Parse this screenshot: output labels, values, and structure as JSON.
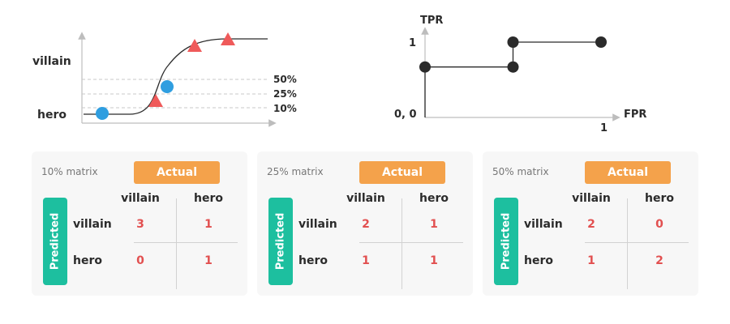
{
  "sigmoid_plot": {
    "y_labels": [
      "villain",
      "hero"
    ],
    "thresholds": [
      "50%",
      "25%",
      "10%"
    ],
    "colors": {
      "circle": "#2f9ee0",
      "triangle": "#ef5a5a",
      "curve": "#2b2b2b",
      "axis": "#bdbdbd",
      "dash": "#c8c8c8"
    }
  },
  "roc_plot": {
    "ylabel": "TPR",
    "xlabel": "FPR",
    "origin_label": "0, 0",
    "y_tick": "1",
    "x_tick": "1",
    "chart_data": {
      "type": "line",
      "x": [
        0,
        0,
        0.5,
        0.5,
        1
      ],
      "y": [
        0,
        0.67,
        0.67,
        1,
        1
      ],
      "xlim": [
        0,
        1
      ],
      "ylim": [
        0,
        1
      ]
    }
  },
  "matrices": [
    {
      "title": "10% matrix",
      "actual_label": "Actual",
      "predicted_label": "Predicted",
      "col_headers": [
        "villain",
        "hero"
      ],
      "row_headers": [
        "villain",
        "hero"
      ],
      "cells": [
        [
          "3",
          "1"
        ],
        [
          "0",
          "1"
        ]
      ]
    },
    {
      "title": "25% matrix",
      "actual_label": "Actual",
      "predicted_label": "Predicted",
      "col_headers": [
        "villain",
        "hero"
      ],
      "row_headers": [
        "villain",
        "hero"
      ],
      "cells": [
        [
          "2",
          "1"
        ],
        [
          "1",
          "1"
        ]
      ]
    },
    {
      "title": "50% matrix",
      "actual_label": "Actual",
      "predicted_label": "Predicted",
      "col_headers": [
        "villain",
        "hero"
      ],
      "row_headers": [
        "villain",
        "hero"
      ],
      "cells": [
        [
          "2",
          "0"
        ],
        [
          "1",
          "2"
        ]
      ]
    }
  ],
  "accent_colors": {
    "actual": "#f4a24b",
    "predicted": "#1dbf9f",
    "cell_value": "#e25050"
  }
}
